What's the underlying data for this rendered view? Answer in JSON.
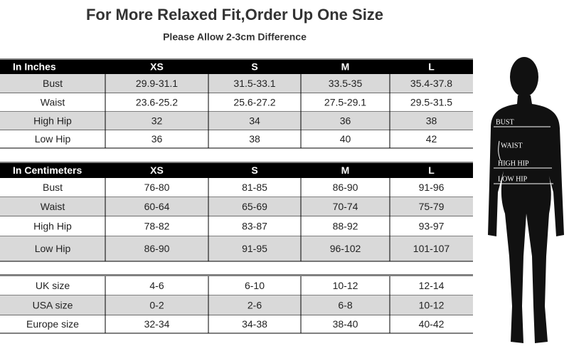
{
  "header": {
    "title": "For More Relaxed Fit,Order Up One Size",
    "subtitle": "Please Allow 2-3cm Difference"
  },
  "inches_table": {
    "header": [
      "In Inches",
      "XS",
      "S",
      "M",
      "L"
    ],
    "rows": [
      [
        "Bust",
        "29.9-31.1",
        "31.5-33.1",
        "33.5-35",
        "35.4-37.8"
      ],
      [
        "Waist",
        "23.6-25.2",
        "25.6-27.2",
        "27.5-29.1",
        "29.5-31.5"
      ],
      [
        "High Hip",
        "32",
        "34",
        "36",
        "38"
      ],
      [
        "Low Hip",
        "36",
        "38",
        "40",
        "42"
      ]
    ]
  },
  "cm_table": {
    "header": [
      "In Centimeters",
      "XS",
      "S",
      "M",
      "L"
    ],
    "rows": [
      [
        "Bust",
        "76-80",
        "81-85",
        "86-90",
        "91-96"
      ],
      [
        "Waist",
        "60-64",
        "65-69",
        "70-74",
        "75-79"
      ],
      [
        "High Hip",
        "78-82",
        "83-87",
        "88-92",
        "93-97"
      ],
      [
        "Low Hip",
        "86-90",
        "91-95",
        "96-102",
        "101-107"
      ]
    ]
  },
  "size_table": {
    "rows": [
      [
        "UK size",
        "4-6",
        "6-10",
        "10-12",
        "12-14"
      ],
      [
        "USA size",
        "0-2",
        "2-6",
        "6-8",
        "10-12"
      ],
      [
        "Europe size",
        "32-34",
        "34-38",
        "38-40",
        "40-42"
      ]
    ]
  },
  "figure": {
    "labels": [
      "BUST",
      "WAIST",
      "HIGH HIP",
      "LOW HIP"
    ]
  }
}
